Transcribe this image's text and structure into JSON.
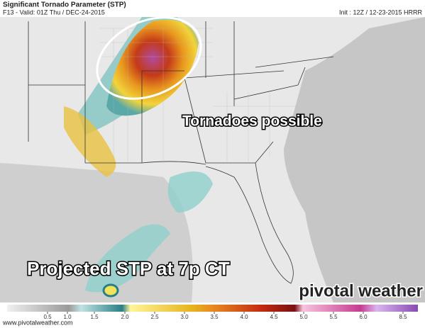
{
  "header": {
    "title": "Significant Tornado Parameter (STP)",
    "valid": "F13 - Valid: 01Z Thu / DEC-24-2015",
    "init": "Init : 12Z / 12-23-2015 HRRR"
  },
  "annotations": {
    "main": "Tornadoes possible",
    "projection": "Projected STP at 7p CT"
  },
  "logo": "pivotal weather",
  "colorbar": {
    "ticks": [
      0.5,
      {
        "value": 1,
        "label": "1.0"
      },
      1.5,
      {
        "value": 2,
        "label": "2.0"
      },
      2.5,
      {
        "value": 3,
        "label": "3.0"
      },
      3.5,
      {
        "value": 4,
        "label": "4.0"
      },
      4.5,
      {
        "value": 5,
        "label": "5.0"
      },
      5.5,
      {
        "value": 6,
        "label": "6.0"
      },
      8.5
    ]
  },
  "footer": "www.pivotalweather.com"
}
